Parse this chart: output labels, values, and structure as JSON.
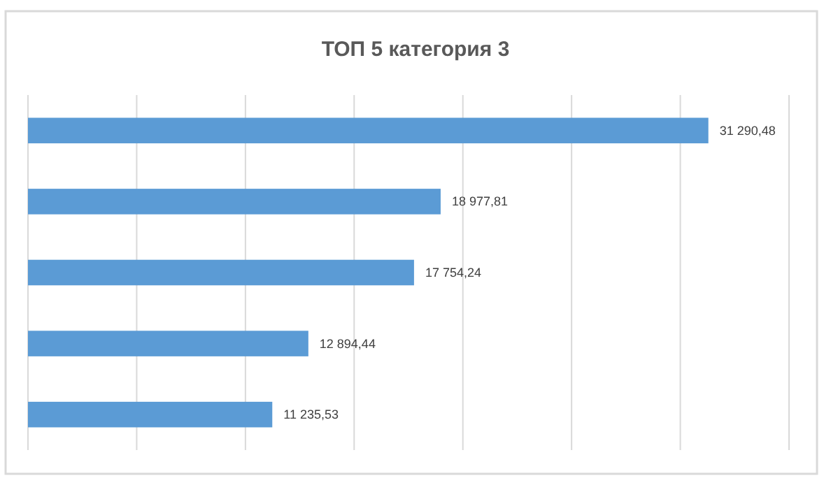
{
  "chart_data": {
    "type": "bar",
    "orientation": "horizontal",
    "title": "ТОП 5 категория 3",
    "categories": [
      null,
      null,
      null,
      null,
      null
    ],
    "values": [
      31290.48,
      18977.81,
      17754.24,
      12894.44,
      11235.53
    ],
    "value_labels": [
      "31 290,48",
      "18 977,81",
      "17 754,24",
      "12 894,44",
      "11 235,53"
    ],
    "color": "#5b9bd5",
    "xlim": [
      0,
      35000
    ],
    "xticks": [
      {
        "value": 0,
        "label": null
      },
      {
        "value": 5000,
        "label": null
      },
      {
        "value": 10000,
        "label": null
      },
      {
        "value": 15000,
        "label": null
      },
      {
        "value": 20000,
        "label": null
      },
      {
        "value": 25000,
        "label": null
      },
      {
        "value": 30000,
        "label": null
      },
      {
        "value": 35000,
        "label": null
      }
    ],
    "grid": "x"
  }
}
